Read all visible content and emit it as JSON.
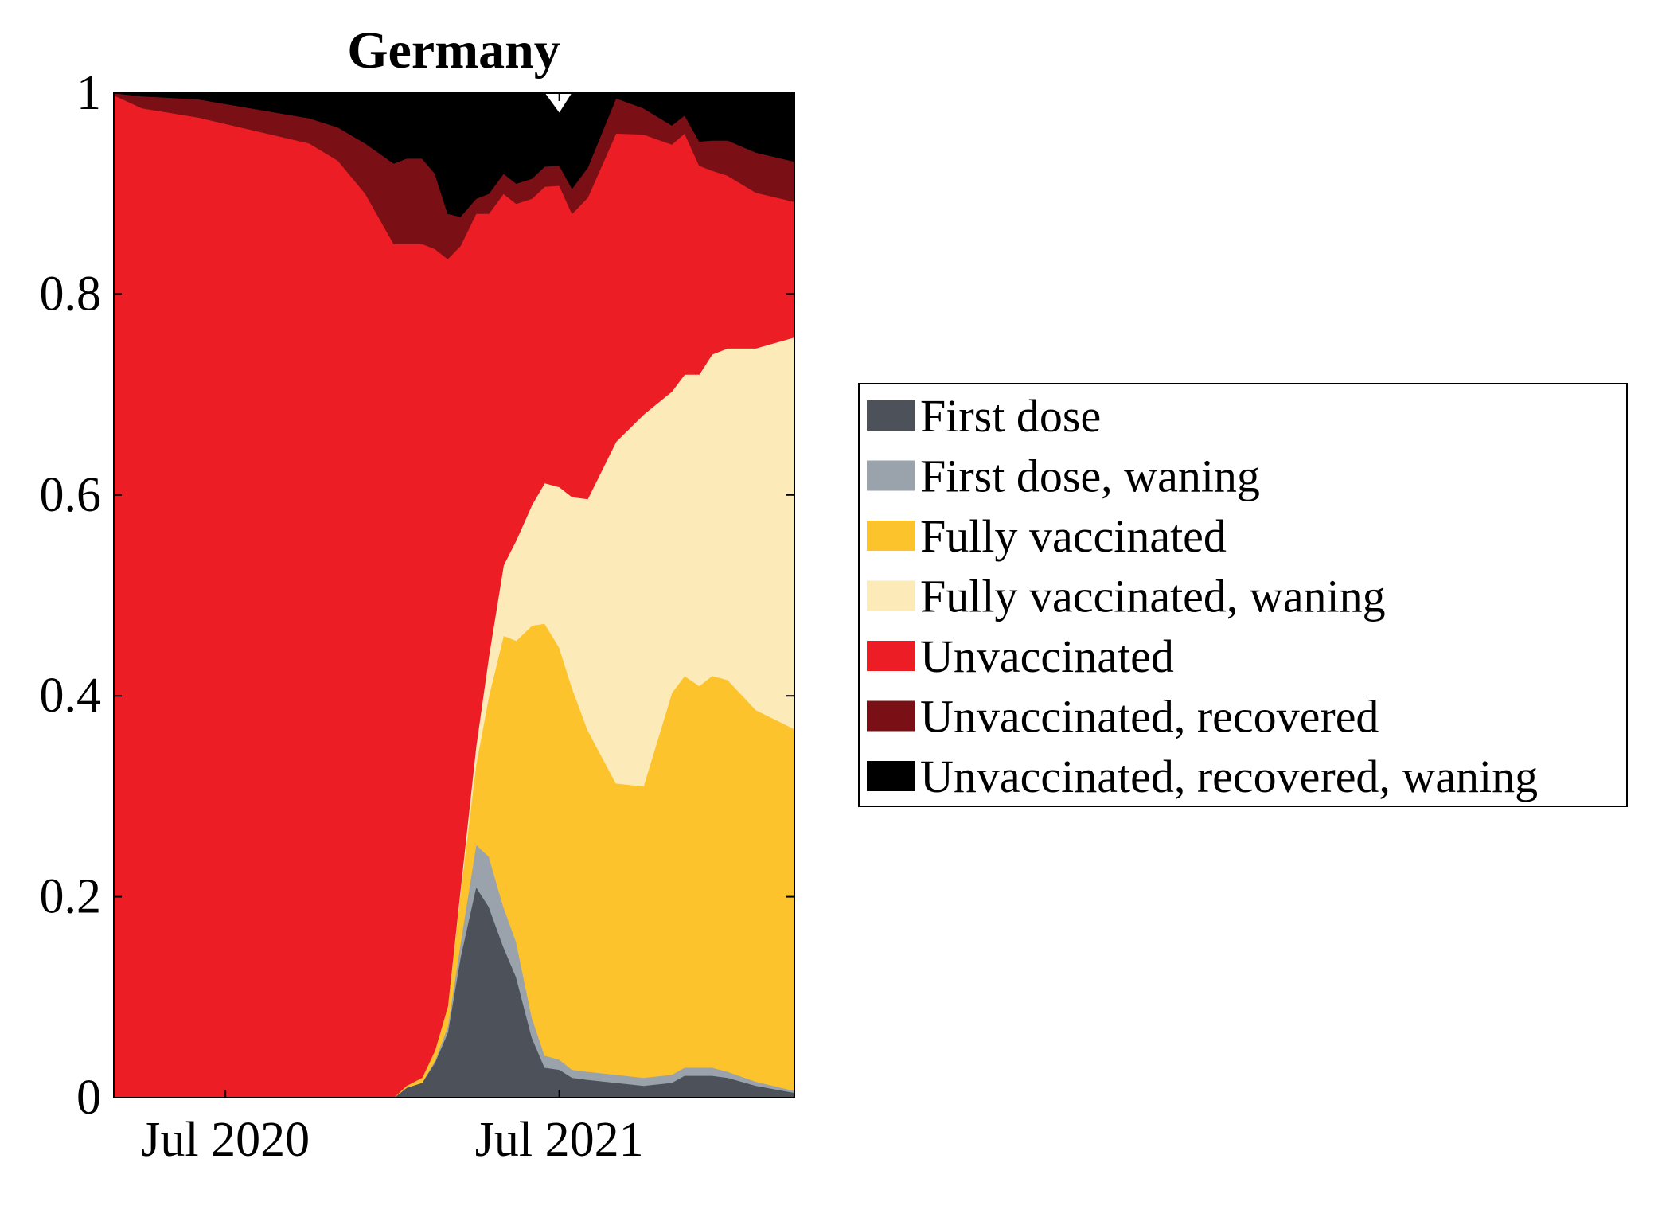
{
  "chart_data": {
    "type": "area",
    "title": "Germany",
    "xlabel": "",
    "ylabel": "",
    "stacked": true,
    "normalized": true,
    "x_range": [
      "2020-03-01",
      "2022-03-15"
    ],
    "ylim": [
      0,
      1
    ],
    "x_ticks": [
      {
        "date": "2020-07-01",
        "label": "Jul 2020"
      },
      {
        "date": "2021-07-01",
        "label": "Jul 2021"
      }
    ],
    "y_ticks": [
      {
        "value": 0,
        "label": "0"
      },
      {
        "value": 0.2,
        "label": "0.2"
      },
      {
        "value": 0.4,
        "label": "0.4"
      },
      {
        "value": 0.6,
        "label": "0.6"
      },
      {
        "value": 0.8,
        "label": "0.8"
      },
      {
        "value": 1,
        "label": "1"
      }
    ],
    "grid": false,
    "legend_position": "right",
    "x": [
      "2020-03-01",
      "2020-04-01",
      "2020-06-01",
      "2020-10-01",
      "2020-11-01",
      "2020-12-01",
      "2021-01-01",
      "2021-01-15",
      "2021-02-01",
      "2021-02-15",
      "2021-03-01",
      "2021-03-15",
      "2021-04-01",
      "2021-04-15",
      "2021-05-01",
      "2021-05-15",
      "2021-06-01",
      "2021-06-15",
      "2021-07-01",
      "2021-07-15",
      "2021-08-01",
      "2021-09-01",
      "2021-10-01",
      "2021-11-01",
      "2021-11-15",
      "2021-12-01",
      "2021-12-15",
      "2022-01-01",
      "2022-02-01",
      "2022-03-15"
    ],
    "series": [
      {
        "name": "First dose",
        "color": "#4d525a",
        "values": [
          0,
          0,
          0,
          0,
          0,
          0,
          0,
          0.01,
          0.015,
          0.035,
          0.065,
          0.14,
          0.21,
          0.19,
          0.15,
          0.12,
          0.06,
          0.03,
          0.028,
          0.02,
          0.018,
          0.015,
          0.012,
          0.015,
          0.022,
          0.022,
          0.022,
          0.02,
          0.012,
          0.005
        ]
      },
      {
        "name": "First dose, waning",
        "color": "#9aa3ab",
        "values": [
          0,
          0,
          0,
          0,
          0,
          0,
          0,
          0,
          0,
          0.002,
          0.006,
          0.014,
          0.042,
          0.05,
          0.04,
          0.035,
          0.02,
          0.012,
          0.01,
          0.008,
          0.008,
          0.008,
          0.008,
          0.008,
          0.008,
          0.008,
          0.008,
          0.006,
          0.004,
          0.002
        ]
      },
      {
        "name": "Fully vaccinated",
        "color": "#fdc32c",
        "values": [
          0,
          0,
          0,
          0,
          0,
          0,
          0,
          0.002,
          0.005,
          0.01,
          0.02,
          0.05,
          0.08,
          0.16,
          0.27,
          0.3,
          0.39,
          0.43,
          0.41,
          0.38,
          0.34,
          0.29,
          0.29,
          0.38,
          0.39,
          0.38,
          0.39,
          0.39,
          0.37,
          0.36
        ]
      },
      {
        "name": "Fully vaccinated, waning",
        "color": "#fdeab9",
        "values": [
          0,
          0,
          0,
          0,
          0,
          0,
          0,
          0,
          0,
          0,
          0,
          0.004,
          0.018,
          0.04,
          0.07,
          0.1,
          0.12,
          0.14,
          0.16,
          0.19,
          0.23,
          0.34,
          0.37,
          0.3,
          0.3,
          0.31,
          0.32,
          0.33,
          0.36,
          0.39
        ]
      },
      {
        "name": "Unvaccinated",
        "color": "#ec1d25",
        "values": [
          0.998,
          0.985,
          0.976,
          0.95,
          0.933,
          0.9,
          0.85,
          0.838,
          0.83,
          0.798,
          0.744,
          0.64,
          0.53,
          0.44,
          0.37,
          0.335,
          0.305,
          0.295,
          0.3,
          0.282,
          0.3,
          0.307,
          0.279,
          0.246,
          0.24,
          0.208,
          0.183,
          0.172,
          0.155,
          0.135
        ]
      },
      {
        "name": "Unvaccinated, recovered",
        "color": "#7a1015",
        "values": [
          0.002,
          0.012,
          0.018,
          0.025,
          0.033,
          0.05,
          0.08,
          0.085,
          0.085,
          0.075,
          0.045,
          0.029,
          0.015,
          0.02,
          0.02,
          0.02,
          0.02,
          0.02,
          0.02,
          0.025,
          0.03,
          0.035,
          0.026,
          0.019,
          0.018,
          0.024,
          0.03,
          0.035,
          0.04,
          0.04
        ]
      },
      {
        "name": "Unvaccinated, recovered, waning",
        "color": "#000000",
        "values": [
          0,
          0.003,
          0.006,
          0.025,
          0.034,
          0.05,
          0.07,
          0.065,
          0.065,
          0.08,
          0.12,
          0.123,
          0.105,
          0.1,
          0.08,
          0.09,
          0.145,
          0.073,
          0.052,
          0.095,
          0.074,
          0.005,
          0.015,
          0.032,
          0.022,
          0.048,
          0.047,
          0.047,
          0.059,
          0.068
        ]
      }
    ]
  }
}
